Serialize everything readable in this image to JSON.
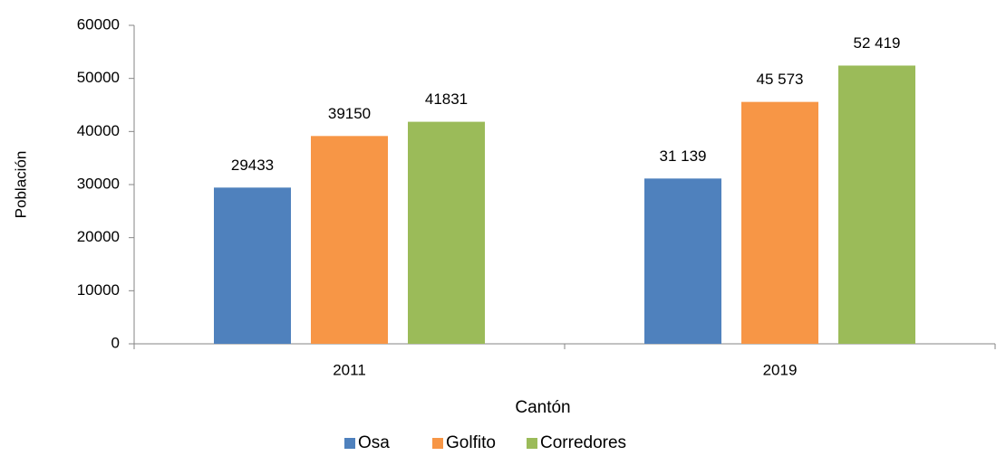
{
  "chart_data": {
    "type": "bar",
    "categories": [
      "2011",
      "2019"
    ],
    "series": [
      {
        "name": "Osa",
        "color": "#4f81bd",
        "values": [
          29433,
          31139
        ],
        "value_labels": [
          "29433",
          "31 139"
        ]
      },
      {
        "name": "Golfito",
        "color": "#f79646",
        "values": [
          39150,
          45573
        ],
        "value_labels": [
          "39150",
          "45 573"
        ]
      },
      {
        "name": "Corredores",
        "color": "#9bbb59",
        "values": [
          41831,
          52419
        ],
        "value_labels": [
          "41831",
          "52 419"
        ]
      }
    ],
    "y_label": "Población",
    "x_label": "Cantón",
    "ylim": [
      0,
      60000
    ],
    "yticks": [
      0,
      10000,
      20000,
      30000,
      40000,
      50000,
      60000
    ],
    "legend": "bottom"
  }
}
